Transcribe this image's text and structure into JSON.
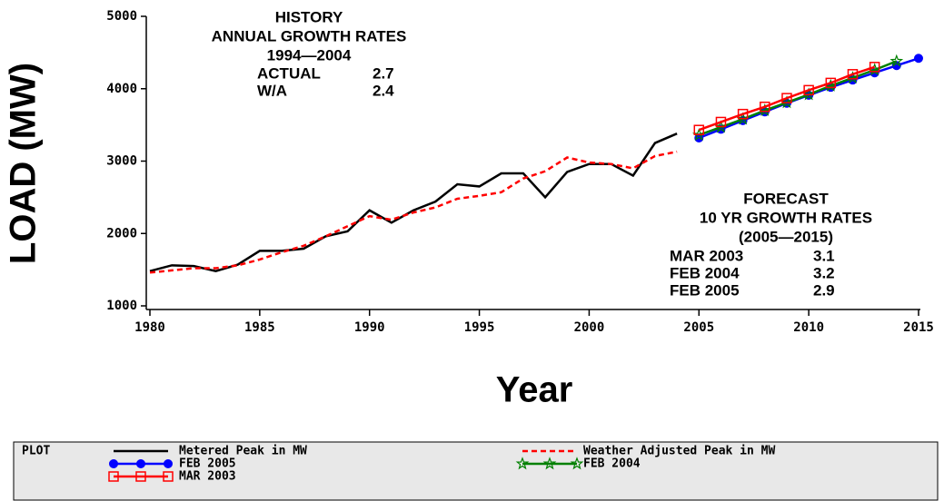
{
  "chart_data": {
    "type": "line",
    "xlabel": "Year",
    "ylabel": "LOAD (MW)",
    "xlim": [
      1980,
      2015
    ],
    "ylim": [
      1000,
      5000
    ],
    "xticks": [
      1980,
      1985,
      1990,
      1995,
      2000,
      2005,
      2010,
      2015
    ],
    "yticks": [
      1000,
      2000,
      3000,
      4000,
      5000
    ],
    "legend_title": "PLOT",
    "legend": "bottom",
    "series": [
      {
        "name": "Metered Peak in MW",
        "color": "#000000",
        "dash": "solid",
        "marker": "none",
        "x": [
          1980,
          1981,
          1982,
          1983,
          1984,
          1985,
          1986,
          1987,
          1988,
          1989,
          1990,
          1991,
          1992,
          1993,
          1994,
          1995,
          1996,
          1997,
          1998,
          1999,
          2000,
          2001,
          2002,
          2003,
          2004
        ],
        "values": [
          1480,
          1560,
          1550,
          1480,
          1570,
          1760,
          1760,
          1790,
          1960,
          2030,
          2320,
          2150,
          2320,
          2440,
          2680,
          2650,
          2830,
          2830,
          2500,
          2850,
          2960,
          2960,
          2800,
          3250,
          3380
        ]
      },
      {
        "name": "Weather Adjusted Peak in MW",
        "color": "#ff0000",
        "dash": "dashed",
        "marker": "none",
        "x": [
          1980,
          1981,
          1982,
          1983,
          1984,
          1985,
          1986,
          1987,
          1988,
          1989,
          1990,
          1991,
          1992,
          1993,
          1994,
          1995,
          1996,
          1997,
          1998,
          1999,
          2000,
          2001,
          2002,
          2003,
          2004
        ],
        "values": [
          1460,
          1490,
          1520,
          1520,
          1560,
          1640,
          1740,
          1830,
          1960,
          2100,
          2240,
          2190,
          2290,
          2360,
          2480,
          2520,
          2570,
          2760,
          2860,
          3050,
          2980,
          2960,
          2900,
          3070,
          3130
        ]
      },
      {
        "name": "FEB 2005",
        "color": "#0000ff",
        "dash": "solid",
        "marker": "circle",
        "x": [
          2005,
          2006,
          2007,
          2008,
          2009,
          2010,
          2011,
          2012,
          2013,
          2014,
          2015
        ],
        "values": [
          3320,
          3440,
          3560,
          3680,
          3800,
          3910,
          4020,
          4120,
          4220,
          4320,
          4420
        ]
      },
      {
        "name": "FEB 2004",
        "color": "#008000",
        "dash": "solid",
        "marker": "star",
        "x": [
          2005,
          2006,
          2007,
          2008,
          2009,
          2010,
          2011,
          2012,
          2013,
          2014
        ],
        "values": [
          3360,
          3470,
          3580,
          3700,
          3810,
          3920,
          4040,
          4150,
          4260,
          4380
        ]
      },
      {
        "name": "MAR 2003",
        "color": "#ff0000",
        "dash": "solid",
        "marker": "square",
        "x": [
          2005,
          2006,
          2007,
          2008,
          2009,
          2010,
          2011,
          2012,
          2013
        ],
        "values": [
          3430,
          3540,
          3650,
          3750,
          3870,
          3980,
          4080,
          4200,
          4300
        ]
      }
    ],
    "annotations": [
      {
        "lines": [
          "HISTORY",
          "ANNUAL GROWTH RATES",
          "1994—2004"
        ],
        "rows": [
          [
            "ACTUAL",
            2.7
          ],
          [
            "W/A",
            2.4
          ]
        ]
      },
      {
        "lines": [
          "FORECAST",
          "10 YR GROWTH RATES",
          "(2005—2015)"
        ],
        "rows": [
          [
            "MAR 2003",
            3.1
          ],
          [
            "FEB 2004",
            3.2
          ],
          [
            "FEB 2005",
            2.9
          ]
        ]
      }
    ]
  }
}
